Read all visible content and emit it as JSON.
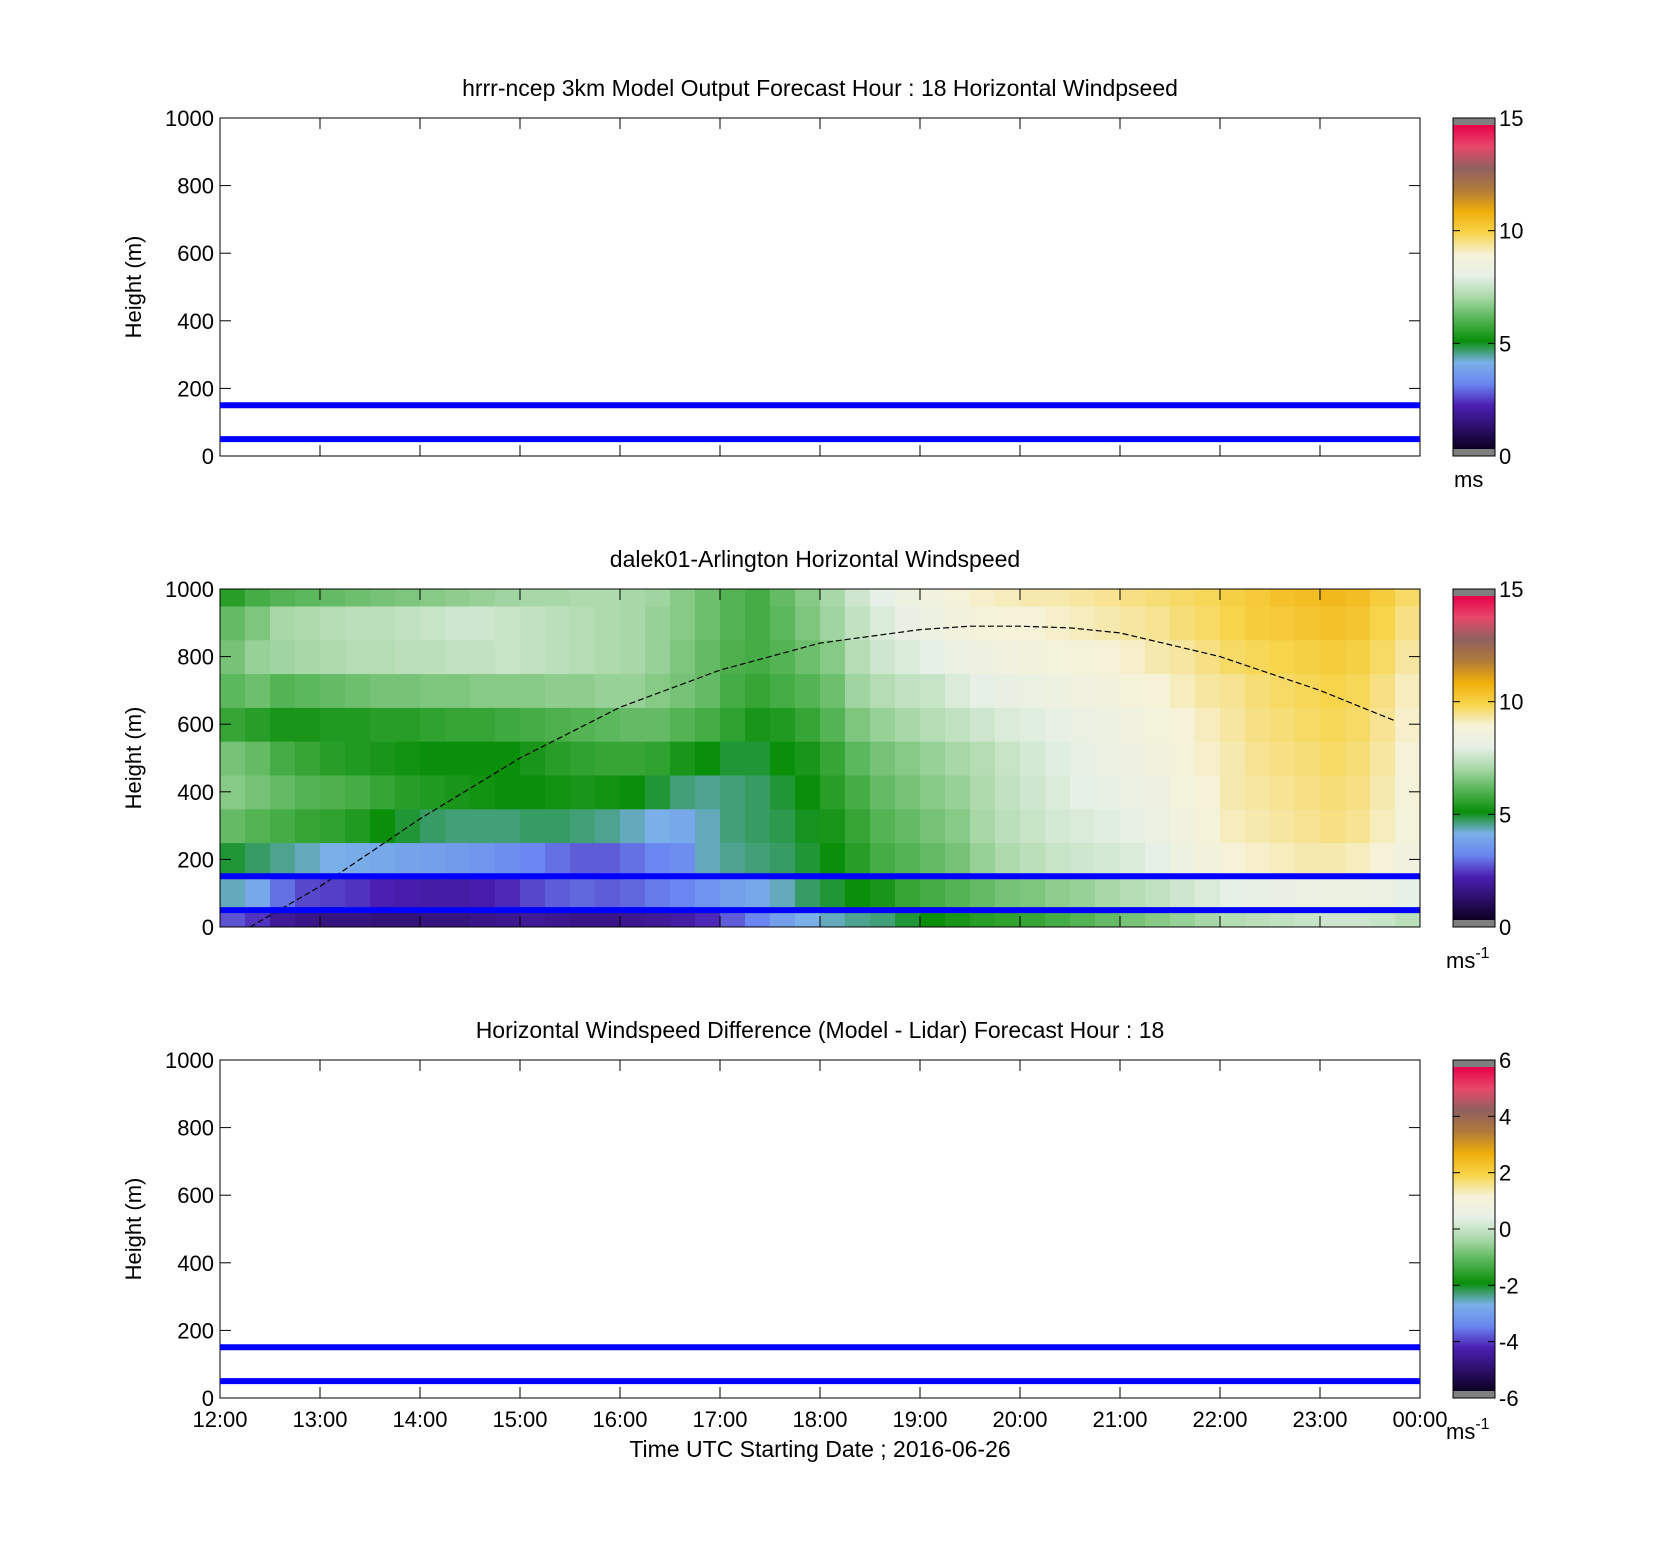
{
  "chart_data": [
    {
      "type": "heatmap",
      "title": "hrrr-ncep 3km Model Output   Forecast Hour : 18 Horizontal Windpseed",
      "ylabel": "Height (m)",
      "ylim": [
        0,
        1000
      ],
      "yticks": [
        0,
        200,
        400,
        600,
        800,
        1000
      ],
      "xlim": [
        "12:00",
        "00:00"
      ],
      "colorbar": {
        "min": 0,
        "max": 15,
        "ticks": [
          0,
          5,
          10,
          15
        ],
        "unit": "ms"
      },
      "reference_lines_m": [
        50,
        150
      ],
      "values": []
    },
    {
      "type": "heatmap",
      "title": "dalek01-Arlington  Horizontal Windspeed",
      "ylabel": "Height (m)",
      "ylim": [
        0,
        1000
      ],
      "yticks": [
        0,
        200,
        400,
        600,
        800,
        1000
      ],
      "xlim": [
        "12:00",
        "00:00"
      ],
      "colorbar": {
        "min": 0,
        "max": 15,
        "ticks": [
          0,
          5,
          10,
          15
        ],
        "unit": "ms",
        "unit_exp": "-1"
      },
      "reference_lines_m": [
        50,
        150
      ],
      "time_hours": [
        12.0,
        12.25,
        12.5,
        12.75,
        13.0,
        13.25,
        13.5,
        13.75,
        14.0,
        14.25,
        14.5,
        14.75,
        15.0,
        15.25,
        15.5,
        15.75,
        16.0,
        16.25,
        16.5,
        16.75,
        17.0,
        17.25,
        17.5,
        17.75,
        18.0,
        18.25,
        18.5,
        18.75,
        19.0,
        19.25,
        19.5,
        19.75,
        20.0,
        20.25,
        20.5,
        20.75,
        21.0,
        21.25,
        21.5,
        21.75,
        22.0,
        22.25,
        22.5,
        22.75,
        23.0,
        23.25,
        23.5,
        23.75
      ],
      "heights_m": [
        0,
        100,
        200,
        300,
        400,
        500,
        600,
        700,
        800,
        900,
        1000
      ],
      "windspeed_ms": [
        [
          2.5,
          4.2,
          4.8,
          6.2,
          6.6,
          6.4,
          5.6,
          6.1,
          6.4,
          6.2,
          5.4
        ],
        [
          2.2,
          3.8,
          4.6,
          6.0,
          6.4,
          6.2,
          5.4,
          6.3,
          6.8,
          6.5,
          5.8
        ],
        [
          1.6,
          2.8,
          4.4,
          5.8,
          6.2,
          5.8,
          5.2,
          6.0,
          6.9,
          7.0,
          6.0
        ],
        [
          1.4,
          2.4,
          4.2,
          5.6,
          6.0,
          5.6,
          5.2,
          6.1,
          7.0,
          7.1,
          6.1
        ],
        [
          1.3,
          2.3,
          4.0,
          5.5,
          5.9,
          5.4,
          5.3,
          6.2,
          7.1,
          7.2,
          6.2
        ],
        [
          1.3,
          2.2,
          3.9,
          5.3,
          5.8,
          5.3,
          5.3,
          6.3,
          7.2,
          7.3,
          6.3
        ],
        [
          1.2,
          2.0,
          3.8,
          5.0,
          5.6,
          5.2,
          5.4,
          6.4,
          7.2,
          7.3,
          6.4
        ],
        [
          1.2,
          1.9,
          3.7,
          4.8,
          5.4,
          5.1,
          5.4,
          6.4,
          7.3,
          7.4,
          6.5
        ],
        [
          1.3,
          1.8,
          3.6,
          4.6,
          5.3,
          5.0,
          5.5,
          6.5,
          7.3,
          7.5,
          6.6
        ],
        [
          1.3,
          1.8,
          3.5,
          4.5,
          5.2,
          5.0,
          5.6,
          6.5,
          7.4,
          7.6,
          6.7
        ],
        [
          1.4,
          1.9,
          3.4,
          4.5,
          5.1,
          5.0,
          5.6,
          6.6,
          7.4,
          7.6,
          6.8
        ],
        [
          1.5,
          2.1,
          3.2,
          4.5,
          5.0,
          5.0,
          5.7,
          6.6,
          7.5,
          7.5,
          6.9
        ],
        [
          1.6,
          2.4,
          3.0,
          4.6,
          5.0,
          5.2,
          5.8,
          6.6,
          7.4,
          7.4,
          7.0
        ],
        [
          1.5,
          2.6,
          2.8,
          4.6,
          5.1,
          5.4,
          5.9,
          6.7,
          7.3,
          7.3,
          7.0
        ],
        [
          1.4,
          2.7,
          2.6,
          4.5,
          5.2,
          5.5,
          6.0,
          6.7,
          7.2,
          7.2,
          7.1
        ],
        [
          1.4,
          2.6,
          2.6,
          4.4,
          5.1,
          5.6,
          6.1,
          6.8,
          7.1,
          7.1,
          7.1
        ],
        [
          1.5,
          2.7,
          2.8,
          4.2,
          5.0,
          5.6,
          6.2,
          6.8,
          7.0,
          7.0,
          7.0
        ],
        [
          1.6,
          2.9,
          3.0,
          4.0,
          4.8,
          5.5,
          6.2,
          6.6,
          6.8,
          6.8,
          6.9
        ],
        [
          1.8,
          3.0,
          3.2,
          3.8,
          4.5,
          5.2,
          6.0,
          6.4,
          6.5,
          6.6,
          6.6
        ],
        [
          2.1,
          3.3,
          4.2,
          4.2,
          4.4,
          5.0,
          5.8,
          6.2,
          6.2,
          6.3,
          6.3
        ],
        [
          2.6,
          3.6,
          4.4,
          4.5,
          4.5,
          4.8,
          5.5,
          5.8,
          5.9,
          6.0,
          6.0
        ],
        [
          3.0,
          3.8,
          4.5,
          4.6,
          4.6,
          4.8,
          5.2,
          5.6,
          5.8,
          5.8,
          5.8
        ],
        [
          3.6,
          4.2,
          4.6,
          4.7,
          4.8,
          5.0,
          5.3,
          5.8,
          6.0,
          6.1,
          6.2
        ],
        [
          4.0,
          4.6,
          4.8,
          4.9,
          5.0,
          5.2,
          5.6,
          6.0,
          6.3,
          6.5,
          6.6
        ],
        [
          4.2,
          4.8,
          5.0,
          5.2,
          5.4,
          5.6,
          6.0,
          6.3,
          6.6,
          6.9,
          7.0
        ],
        [
          4.4,
          5.0,
          5.4,
          5.6,
          5.8,
          6.1,
          6.5,
          6.9,
          7.2,
          7.4,
          7.6
        ],
        [
          4.5,
          5.2,
          5.8,
          6.0,
          6.2,
          6.4,
          6.8,
          7.2,
          7.6,
          7.8,
          8.0
        ],
        [
          4.8,
          5.6,
          6.0,
          6.2,
          6.4,
          6.6,
          7.0,
          7.4,
          7.8,
          8.2,
          8.4
        ],
        [
          5.0,
          5.8,
          6.2,
          6.4,
          6.6,
          6.8,
          7.2,
          7.5,
          8.0,
          8.4,
          8.6
        ],
        [
          5.2,
          6.0,
          6.4,
          6.6,
          6.8,
          7.0,
          7.4,
          7.8,
          8.3,
          8.7,
          8.9
        ],
        [
          5.4,
          6.2,
          6.8,
          7.0,
          7.1,
          7.2,
          7.6,
          8.0,
          8.5,
          8.9,
          9.1
        ],
        [
          5.5,
          6.4,
          7.1,
          7.3,
          7.4,
          7.5,
          7.8,
          8.2,
          8.6,
          9.0,
          9.2
        ],
        [
          5.6,
          6.5,
          7.3,
          7.5,
          7.6,
          7.7,
          7.9,
          8.3,
          8.7,
          9.0,
          9.3
        ],
        [
          5.8,
          6.7,
          7.5,
          7.7,
          7.8,
          7.9,
          8.1,
          8.4,
          8.8,
          9.1,
          9.3
        ],
        [
          6.0,
          6.8,
          7.6,
          7.8,
          8.0,
          8.1,
          8.3,
          8.6,
          8.9,
          9.2,
          9.4
        ],
        [
          6.2,
          7.0,
          7.7,
          7.9,
          8.1,
          8.3,
          8.4,
          8.7,
          9.0,
          9.3,
          9.5
        ],
        [
          6.4,
          7.2,
          7.8,
          8.1,
          8.3,
          8.5,
          8.6,
          8.9,
          9.1,
          9.4,
          9.6
        ],
        [
          6.6,
          7.4,
          8.0,
          8.3,
          8.5,
          8.7,
          8.8,
          9.0,
          9.3,
          9.5,
          9.7
        ],
        [
          6.8,
          7.6,
          8.4,
          8.6,
          8.8,
          8.9,
          9.0,
          9.2,
          9.4,
          9.7,
          9.8
        ],
        [
          7.0,
          7.8,
          8.7,
          8.9,
          9.0,
          9.1,
          9.2,
          9.4,
          9.6,
          9.8,
          9.9
        ],
        [
          7.2,
          8.0,
          9.0,
          9.2,
          9.3,
          9.3,
          9.4,
          9.5,
          9.8,
          10.0,
          10.1
        ],
        [
          7.3,
          8.1,
          9.1,
          9.3,
          9.4,
          9.5,
          9.6,
          9.7,
          9.9,
          10.2,
          10.3
        ],
        [
          7.4,
          8.2,
          9.2,
          9.4,
          9.5,
          9.6,
          9.7,
          9.8,
          10.0,
          10.3,
          10.5
        ],
        [
          7.5,
          8.3,
          9.3,
          9.5,
          9.6,
          9.7,
          9.8,
          9.9,
          10.1,
          10.4,
          10.6
        ],
        [
          7.6,
          8.4,
          9.3,
          9.6,
          9.7,
          9.8,
          9.9,
          10.0,
          10.2,
          10.5,
          10.7
        ],
        [
          7.6,
          8.4,
          9.2,
          9.5,
          9.6,
          9.7,
          9.8,
          9.9,
          10.1,
          10.4,
          10.6
        ],
        [
          7.5,
          8.3,
          9.0,
          9.2,
          9.3,
          9.4,
          9.5,
          9.6,
          9.8,
          10.0,
          10.2
        ],
        [
          7.3,
          8.0,
          8.6,
          8.8,
          8.9,
          9.0,
          9.1,
          9.2,
          9.4,
          9.6,
          9.8
        ]
      ],
      "boundary_layer_curve": {
        "time_hours": [
          12.3,
          13.0,
          14.0,
          15.0,
          16.0,
          17.0,
          18.0,
          19.0,
          19.5,
          20.0,
          20.5,
          21.0,
          22.0,
          23.0,
          23.75
        ],
        "height_m": [
          0,
          120,
          320,
          500,
          650,
          760,
          840,
          880,
          890,
          890,
          885,
          870,
          800,
          700,
          610
        ]
      }
    },
    {
      "type": "heatmap",
      "title": "Horizontal Windspeed Difference (Model - Lidar) Forecast Hour : 18",
      "ylabel": "Height (m)",
      "xlabel": "Time UTC  Starting Date ; 2016-06-26",
      "ylim": [
        0,
        1000
      ],
      "yticks": [
        0,
        200,
        400,
        600,
        800,
        1000
      ],
      "xticks": [
        "12:00",
        "13:00",
        "14:00",
        "15:00",
        "16:00",
        "17:00",
        "18:00",
        "19:00",
        "20:00",
        "21:00",
        "22:00",
        "23:00",
        "00:00"
      ],
      "colorbar": {
        "min": -6,
        "max": 6,
        "ticks": [
          -6,
          -4,
          -2,
          0,
          2,
          4,
          6
        ],
        "unit": "ms",
        "unit_exp": "-1"
      },
      "reference_lines_m": [
        50,
        150
      ],
      "values": []
    }
  ],
  "colors": {
    "reference_line": "#0000ff",
    "out_of_range": "#7f7f7f",
    "colormap_stops": [
      "#0b0021",
      "#2d0f6b",
      "#4b1fb2",
      "#6a86f0",
      "#7ab0e8",
      "#0a8f0a",
      "#54b454",
      "#a8d8a8",
      "#e6f0e6",
      "#f6f2d8",
      "#f7d44a",
      "#f0ae0a",
      "#b07a3a",
      "#906060",
      "#e8486a",
      "#e8004a"
    ]
  }
}
